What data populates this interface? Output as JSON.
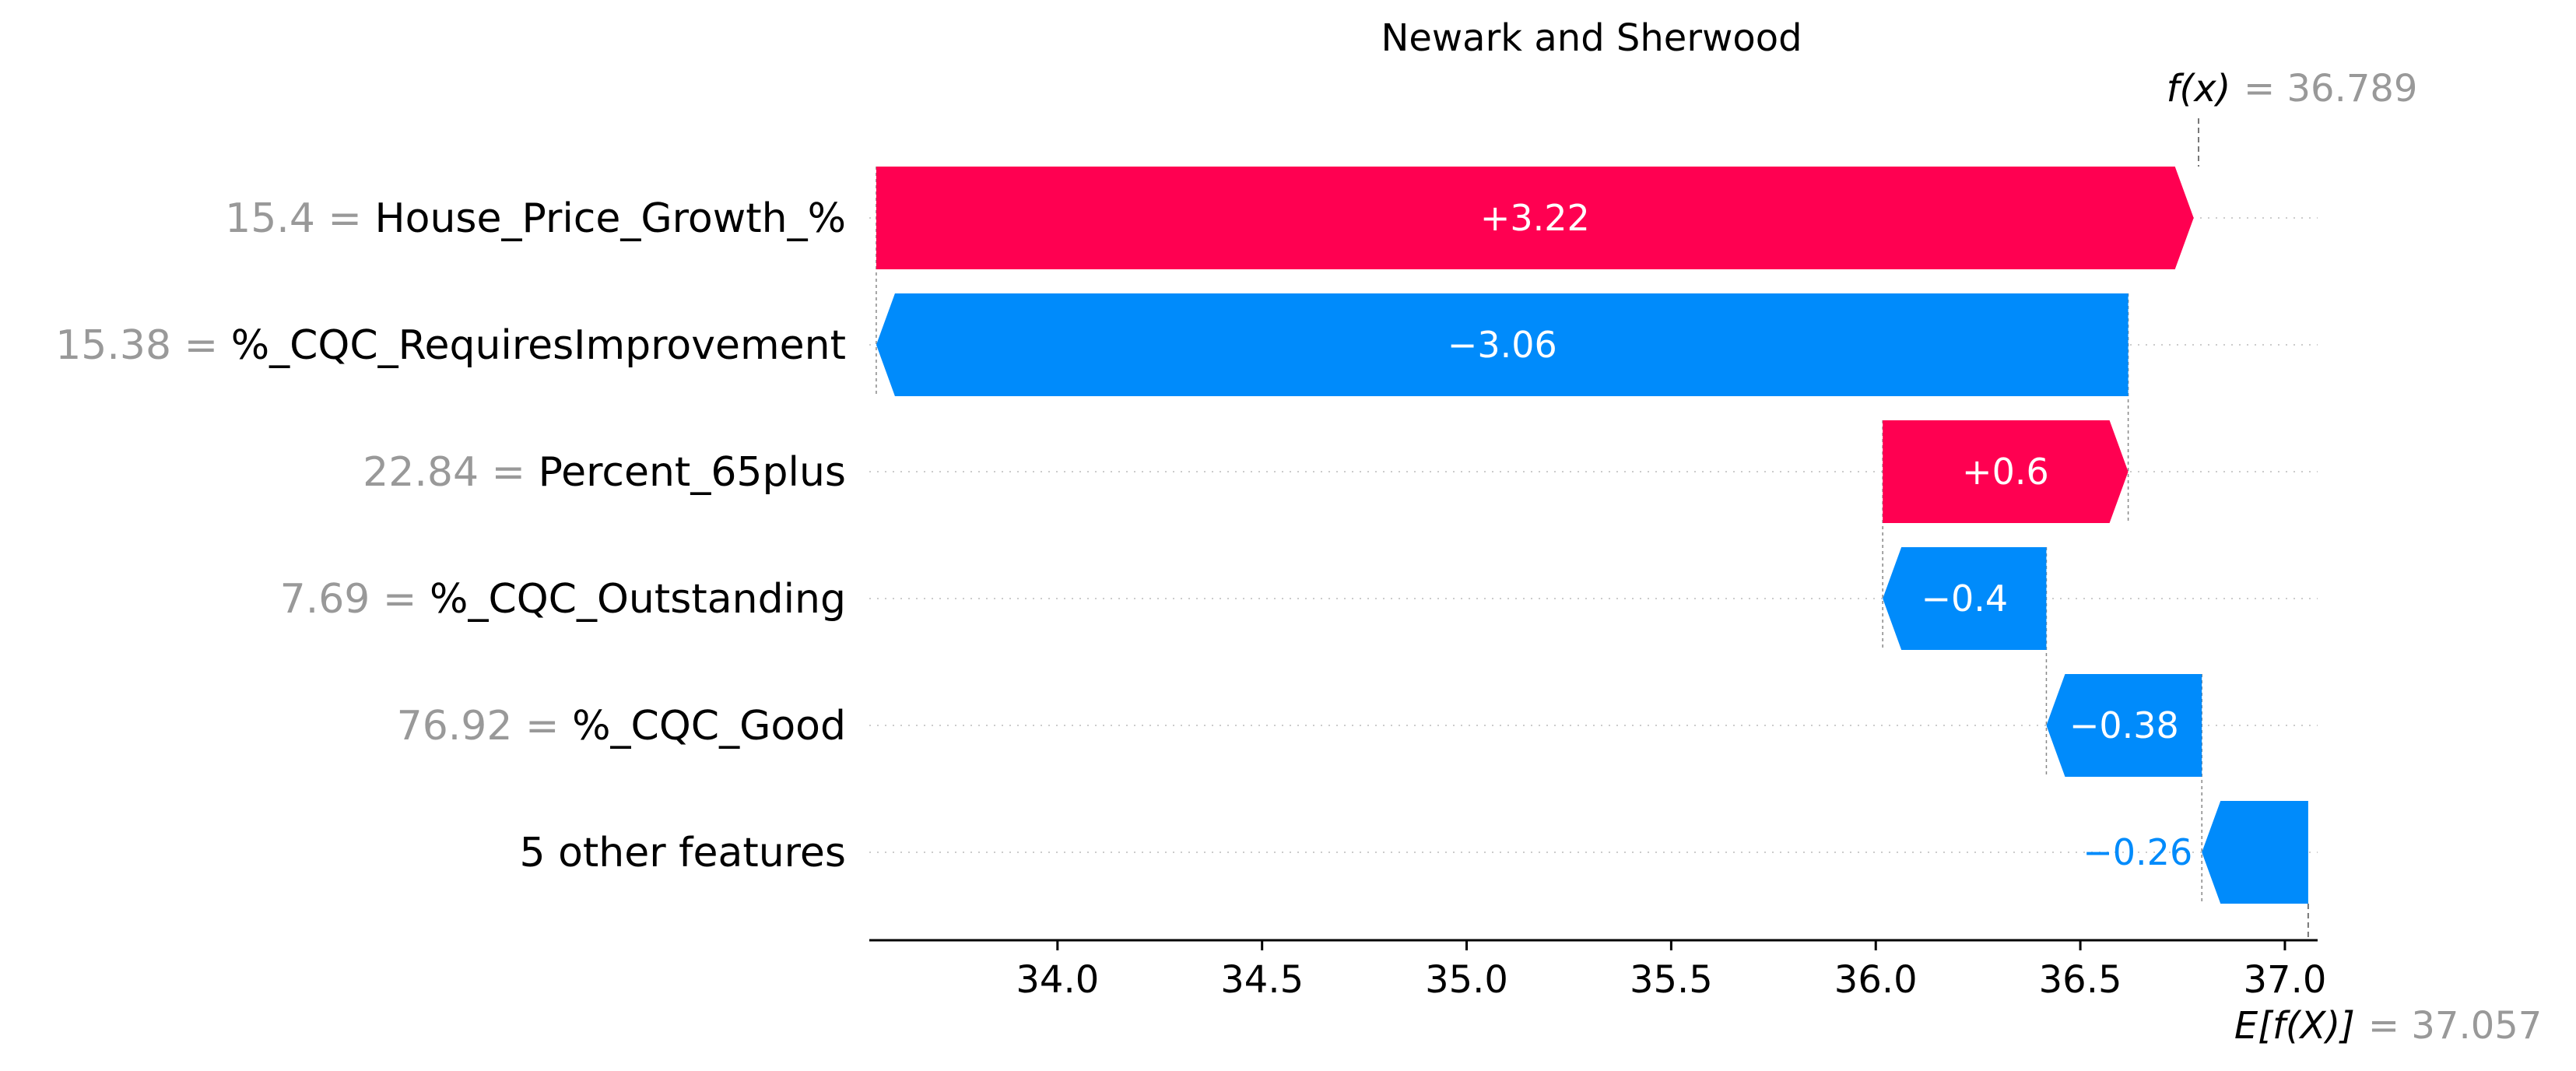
{
  "chart_data": {
    "type": "waterfall",
    "title": "Newark and Sherwood",
    "base_value": 37.057,
    "base_value_text": "37.057",
    "base_label_main": "E[f(X)]",
    "output_value": 36.789,
    "output_value_text": "36.789",
    "output_label_main": "f(x)",
    "equals_sign": "=",
    "features": [
      {
        "name": "House_Price_Growth_%",
        "value": "15.4",
        "contribution": 3.22,
        "label": "+3.22"
      },
      {
        "name": "%_CQC_RequiresImprovement",
        "value": "15.38",
        "contribution": -3.06,
        "label": "−3.06"
      },
      {
        "name": "Percent_65plus",
        "value": "22.84",
        "contribution": 0.6,
        "label": "+0.6"
      },
      {
        "name": "%_CQC_Outstanding",
        "value": "7.69",
        "contribution": -0.4,
        "label": "−0.4"
      },
      {
        "name": "%_CQC_Good",
        "value": "76.92",
        "contribution": -0.38,
        "label": "−0.38"
      },
      {
        "name": "5 other features",
        "value": "",
        "contribution": -0.26,
        "label": "−0.26"
      }
    ],
    "x_ticks": [
      34.0,
      34.5,
      35.0,
      35.5,
      36.0,
      36.5,
      37.0
    ],
    "x_tick_labels": [
      "34.0",
      "34.5",
      "35.0",
      "35.5",
      "36.0",
      "36.5",
      "37.0"
    ],
    "xlim": [
      33.54,
      37.08
    ],
    "colors": {
      "positive": "#ff0051",
      "negative": "#008bfb",
      "muted_text": "#999999"
    }
  }
}
